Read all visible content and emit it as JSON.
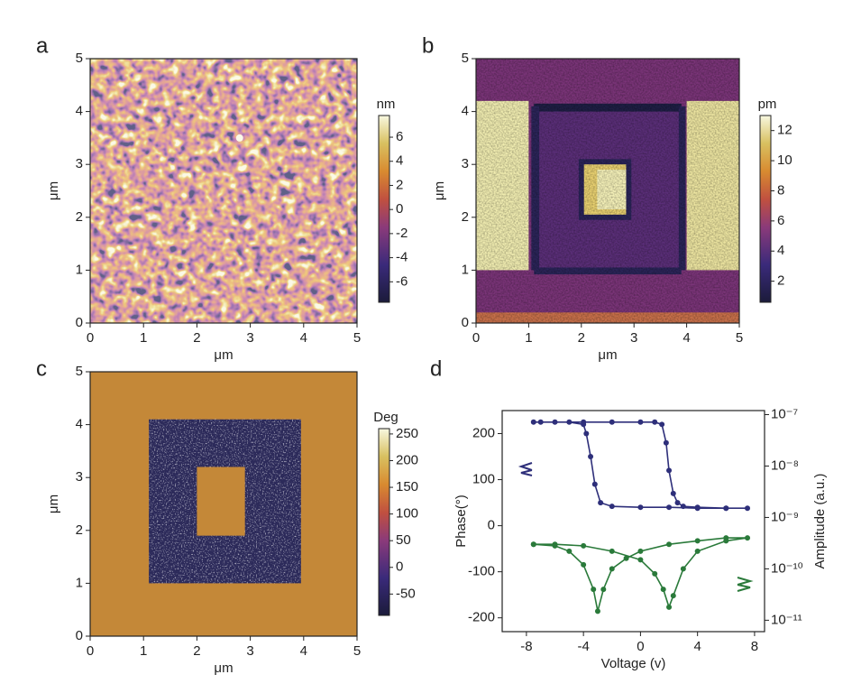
{
  "chart_data": [
    {
      "type": "heatmap",
      "label": "a",
      "xlabel": "μm",
      "ylabel": "μm",
      "xlim": [
        0,
        5
      ],
      "ylim": [
        0,
        5
      ],
      "xticks": [
        0,
        1,
        2,
        3,
        4,
        5
      ],
      "yticks": [
        0,
        1,
        2,
        3,
        4,
        5
      ],
      "colorbar_label": "nm",
      "clim": [
        -7.7,
        7.8
      ],
      "cticks": [
        6,
        4,
        2,
        0,
        -2,
        -4,
        -6
      ]
    },
    {
      "type": "heatmap",
      "label": "b",
      "xlabel": "μm",
      "ylabel": "μm",
      "xlim": [
        0,
        5
      ],
      "ylim": [
        0,
        5
      ],
      "xticks": [
        0,
        1,
        2,
        3,
        4,
        5
      ],
      "yticks": [
        0,
        1,
        2,
        3,
        4,
        5
      ],
      "colorbar_label": "pm",
      "clim": [
        0.6,
        13
      ],
      "cticks": [
        12,
        10,
        8,
        6,
        4,
        2
      ]
    },
    {
      "type": "heatmap",
      "label": "c",
      "xlabel": "μm",
      "ylabel": "μm",
      "xlim": [
        0,
        5
      ],
      "ylim": [
        0,
        5
      ],
      "xticks": [
        0,
        1,
        2,
        3,
        4,
        5
      ],
      "yticks": [
        0,
        1,
        2,
        3,
        4,
        5
      ],
      "colorbar_label": "Deg",
      "clim": [
        -90,
        260
      ],
      "cticks": [
        250,
        200,
        150,
        100,
        50,
        0,
        -50
      ]
    },
    {
      "type": "line",
      "label": "d",
      "xlabel": "Voltage (v)",
      "ylabel": "Phase(°)",
      "y2label": "Amplitude (a.u.)",
      "xlim": [
        -9.7,
        8.7
      ],
      "ylim": [
        -230,
        250
      ],
      "xticks": [
        -8,
        -4,
        0,
        4,
        8
      ],
      "yticks": [
        -200,
        -100,
        0,
        100,
        200
      ],
      "y2lim": [
        6e-12,
        1.2e-07
      ],
      "y2log": true,
      "y2ticks": [
        {
          "value": 1e-07,
          "label": "10⁻⁷"
        },
        {
          "value": 1e-08,
          "label": "10⁻⁸"
        },
        {
          "value": 1e-09,
          "label": "10⁻⁹"
        },
        {
          "value": 1e-10,
          "label": "10⁻¹⁰"
        },
        {
          "value": 1e-11,
          "label": "10⁻¹¹"
        }
      ],
      "series": [
        {
          "color": "#2e2f7a",
          "axis": "y",
          "x": [
            -7.5,
            -6,
            -4,
            -2,
            0,
            1,
            1.5,
            1.8,
            2,
            2.3,
            2.6,
            3,
            4,
            6,
            7.5,
            6,
            4,
            2,
            0,
            -2,
            -2.8,
            -3.2,
            -3.5,
            -3.8,
            -4,
            -5,
            -7
          ],
          "values": [
            225,
            225,
            225,
            225,
            225,
            225,
            220,
            180,
            120,
            70,
            50,
            42,
            40,
            38,
            38,
            38,
            38,
            40,
            40,
            42,
            50,
            90,
            150,
            200,
            220,
            225,
            225
          ]
        },
        {
          "color": "#2a7a3a",
          "axis": "y2",
          "x": [
            -7.5,
            -6,
            -5,
            -4,
            -3.3,
            -3,
            -2.6,
            -2,
            -1,
            0,
            2,
            4,
            6,
            7.5,
            6,
            4,
            3,
            2.3,
            2,
            1.6,
            1,
            0,
            -2,
            -4,
            -6,
            -7.5
          ],
          "values": [
            3e-10,
            2.8e-10,
            2.2e-10,
            1.2e-10,
            4e-11,
            1.5e-11,
            4e-11,
            1e-10,
            1.6e-10,
            2.2e-10,
            3e-10,
            3.5e-10,
            4e-10,
            4e-10,
            3.5e-10,
            2.2e-10,
            1e-10,
            3e-11,
            1.8e-11,
            4e-11,
            8e-11,
            1.5e-10,
            2.2e-10,
            2.8e-10,
            3e-10,
            3e-10
          ]
        }
      ]
    }
  ]
}
